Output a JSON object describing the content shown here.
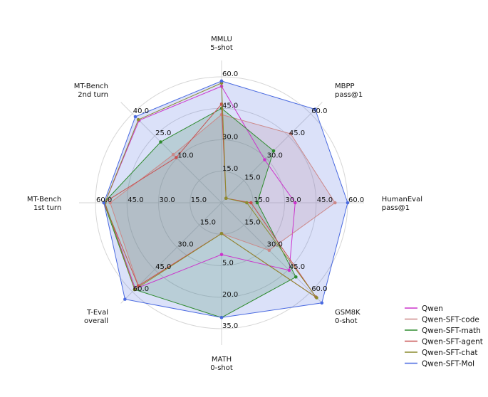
{
  "chart_data": {
    "type": "radar",
    "axes": [
      {
        "line1": "MMLU",
        "line2": "5-shot",
        "min": 0,
        "max": 60,
        "ticks": [
          "15.0",
          "30.0",
          "45.0",
          "60.0"
        ]
      },
      {
        "line1": "MBPP",
        "line2": "pass@1",
        "min": 0,
        "max": 60,
        "ticks": [
          "15.0",
          "30.0",
          "45.0",
          "60.0"
        ]
      },
      {
        "line1": "HumanEval",
        "line2": "pass@1",
        "min": 0,
        "max": 60,
        "ticks": [
          "15.0",
          "30.0",
          "45.0",
          "60.0"
        ]
      },
      {
        "line1": "GSM8K",
        "line2": "0-shot",
        "min": 0,
        "max": 60,
        "ticks": [
          "15.0",
          "30.0",
          "45.0",
          "60.0"
        ]
      },
      {
        "line1": "MATH",
        "line2": "0-shot",
        "min": -10,
        "max": 35,
        "ticks": [
          "5.0",
          "20.0",
          "35.0"
        ]
      },
      {
        "line1": "T-Eval",
        "line2": "overall",
        "min": 0,
        "max": 60,
        "ticks": [
          "15.0",
          "30.0",
          "45.0",
          "60.0"
        ]
      },
      {
        "line1": "MT-Bench",
        "line2": "1st turn",
        "min": 0,
        "max": 60,
        "ticks": [
          "15.0",
          "30.0",
          "45.0",
          "60.0"
        ]
      },
      {
        "line1": "MT-Bench",
        "line2": "2nd turn",
        "min": -5,
        "max": 55,
        "ticks": [
          "10.0",
          "25.0",
          "40.0"
        ]
      }
    ],
    "tick_fractions": [
      0.25,
      0.5,
      0.75,
      1.0
    ],
    "series": [
      {
        "name": "Qwen",
        "color": "#cc33cc",
        "fill": false,
        "values": [
          55.5,
          29.0,
          35.0,
          45.5,
          8.5,
          58.0,
          55.5,
          50.5
        ]
      },
      {
        "name": "Qwen-SFT-code",
        "color": "#cc8888",
        "fill": true,
        "values": [
          42.0,
          46.5,
          54.0,
          32.0,
          1.0,
          56.0,
          53.0,
          27.5
        ]
      },
      {
        "name": "Qwen-SFT-math",
        "color": "#2e8b2e",
        "fill": true,
        "values": [
          45.0,
          35.0,
          17.0,
          50.0,
          31.0,
          58.5,
          56.0,
          36.0
        ]
      },
      {
        "name": "Qwen-SFT-agent",
        "color": "#c85050",
        "fill": false,
        "values": [
          47.0,
          3.0,
          14.0,
          63.5,
          1.0,
          56.0,
          56.0,
          25.5
        ]
      },
      {
        "name": "Qwen-SFT-chat",
        "color": "#8b8b2e",
        "fill": false,
        "values": [
          57.0,
          3.0,
          12.0,
          64.0,
          1.0,
          58.5,
          55.5,
          51.0
        ]
      },
      {
        "name": "Qwen-SFT-MoI",
        "color": "#4a6ae0",
        "fill": true,
        "values": [
          58.0,
          63.0,
          60.0,
          67.5,
          31.0,
          65.0,
          56.0,
          53.0
        ]
      }
    ]
  }
}
